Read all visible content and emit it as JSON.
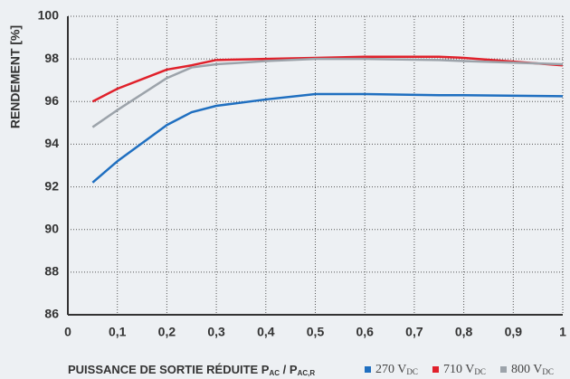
{
  "chart_data": {
    "type": "line",
    "ylabel": "RENDEMENT [%]",
    "xlabel": {
      "text": "PUISSANCE DE SORTIE RÉDUITE P",
      "sub1": "AC",
      "mid": " / P",
      "sub2": "AC,R"
    },
    "x": [
      0.05,
      0.1,
      0.2,
      0.25,
      0.3,
      0.4,
      0.5,
      0.6,
      0.75,
      0.8,
      1.0
    ],
    "series": [
      {
        "name": "270 V",
        "name_sub": "DC",
        "color": "#1f6fc0",
        "values": [
          92.2,
          93.2,
          94.9,
          95.5,
          95.8,
          96.1,
          96.35,
          96.35,
          96.3,
          96.3,
          96.25
        ]
      },
      {
        "name": "710 V",
        "name_sub": "DC",
        "color": "#e0202a",
        "values": [
          96.0,
          96.6,
          97.5,
          97.7,
          97.95,
          98.0,
          98.05,
          98.1,
          98.1,
          98.05,
          97.7
        ]
      },
      {
        "name": "800 V",
        "name_sub": "DC",
        "color": "#9ca3aa",
        "values": [
          94.8,
          95.6,
          97.1,
          97.6,
          97.75,
          97.9,
          98.0,
          98.0,
          97.95,
          97.9,
          97.75
        ]
      }
    ],
    "xlim": [
      0,
      1
    ],
    "ylim": [
      86,
      100
    ],
    "xticks": [
      0,
      {
        "value": 0.1,
        "label": "0,1"
      },
      {
        "value": 0.2,
        "label": "0,2"
      },
      {
        "value": 0.3,
        "label": "0,3"
      },
      {
        "value": 0.4,
        "label": "0,4"
      },
      {
        "value": 0.5,
        "label": "0,5"
      },
      {
        "value": 0.6,
        "label": "0,6"
      },
      {
        "value": 0.7,
        "label": "0,7"
      },
      {
        "value": 0.8,
        "label": "0,8"
      },
      {
        "value": 0.9,
        "label": "0,9"
      },
      1
    ],
    "yticks": [
      86,
      88,
      90,
      92,
      94,
      96,
      98,
      100
    ],
    "grid": true
  }
}
